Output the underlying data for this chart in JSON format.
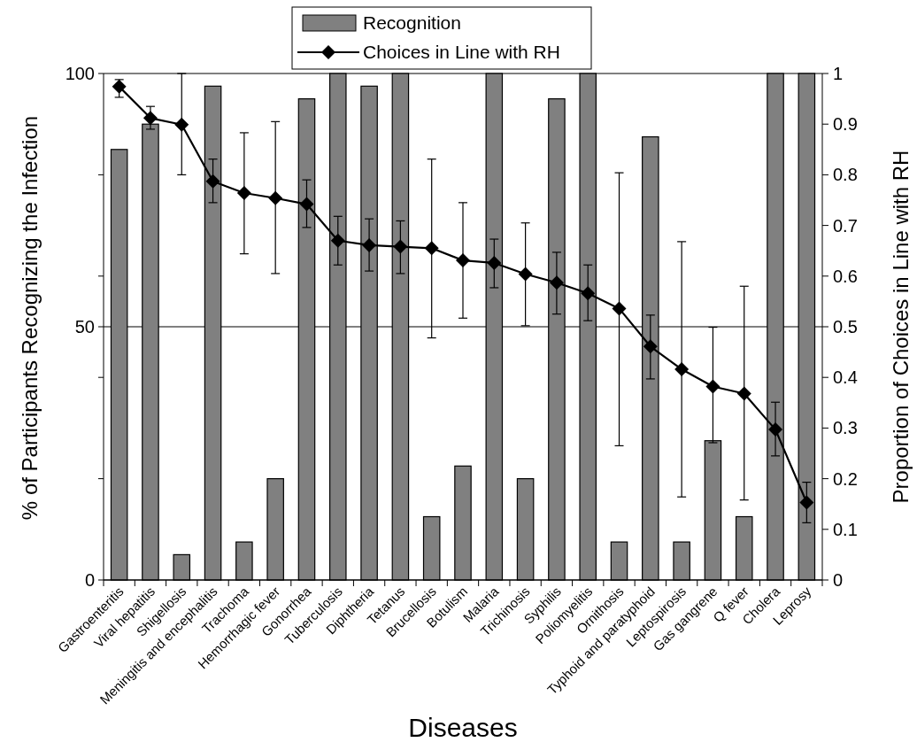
{
  "chart_data": {
    "type": "bar",
    "xlabel": "Diseases",
    "ylabel": "% of Participants Recognizing the Infection",
    "y2label": "Proportion of Choices in Line with RH",
    "categories": [
      "Gastroenteritis",
      "Viral hepatitis",
      "Shigellosis",
      "Meningitis and encephalitis",
      "Trachoma",
      "Hemorrhagic fever",
      "Gonorrhea",
      "Tuberculosis",
      "Diphtheria",
      "Tetanus",
      "Brucellosis",
      "Botulism",
      "Malaria",
      "Trichinosis",
      "Syphilis",
      "Poliomyelitis",
      "Ornithosis",
      "Typhoid and paratyphoid",
      "Leptospirosis",
      "Gas gangrene",
      "Q fever",
      "Cholera",
      "Leprosy"
    ],
    "series": [
      {
        "name": "Recognition",
        "color": "#808080",
        "values": [
          85,
          90,
          5,
          97.5,
          7.5,
          20,
          95,
          100,
          97.5,
          100,
          12.5,
          22.5,
          100,
          20,
          95,
          100,
          7.5,
          87.5,
          7.5,
          27.5,
          12.5,
          100,
          100
        ]
      },
      {
        "name": "Choices in Line with RH",
        "type": "line",
        "axis": "y2",
        "color": "#000000",
        "marker": "diamond",
        "values": [
          0.974,
          0.912,
          0.899,
          0.787,
          0.764,
          0.754,
          0.742,
          0.67,
          0.661,
          0.658,
          0.655,
          0.631,
          0.626,
          0.604,
          0.587,
          0.566,
          0.536,
          0.461,
          0.416,
          0.382,
          0.368,
          0.297,
          0.153
        ],
        "errors": [
          [
            0.953,
            0.988
          ],
          [
            0.89,
            0.935
          ],
          [
            0.8,
            1.0
          ],
          [
            0.745,
            0.831
          ],
          [
            0.644,
            0.883
          ],
          [
            0.605,
            0.905
          ],
          [
            0.696,
            0.79
          ],
          [
            0.622,
            0.718
          ],
          [
            0.61,
            0.713
          ],
          [
            0.605,
            0.709
          ],
          [
            0.478,
            0.831
          ],
          [
            0.517,
            0.745
          ],
          [
            0.577,
            0.673
          ],
          [
            0.502,
            0.705
          ],
          [
            0.525,
            0.647
          ],
          [
            0.512,
            0.622
          ],
          [
            0.265,
            0.804
          ],
          [
            0.397,
            0.523
          ],
          [
            0.164,
            0.668
          ],
          [
            0.271,
            0.499
          ],
          [
            0.158,
            0.58
          ],
          [
            0.245,
            0.351
          ],
          [
            0.113,
            0.193
          ]
        ]
      }
    ],
    "ylim": [
      0,
      100
    ],
    "yticks": [
      0,
      {
        "value": 20,
        "label": null
      },
      {
        "value": 40,
        "label": null
      },
      50,
      {
        "value": 60,
        "label": null
      },
      {
        "value": 80,
        "label": null
      },
      100
    ],
    "y2lim": [
      0,
      1
    ],
    "y2ticks": [
      0,
      0.1,
      0.2,
      0.3,
      0.4,
      0.5,
      0.6,
      0.7,
      0.8,
      0.9,
      1
    ],
    "grid": "y",
    "legend": "top"
  }
}
